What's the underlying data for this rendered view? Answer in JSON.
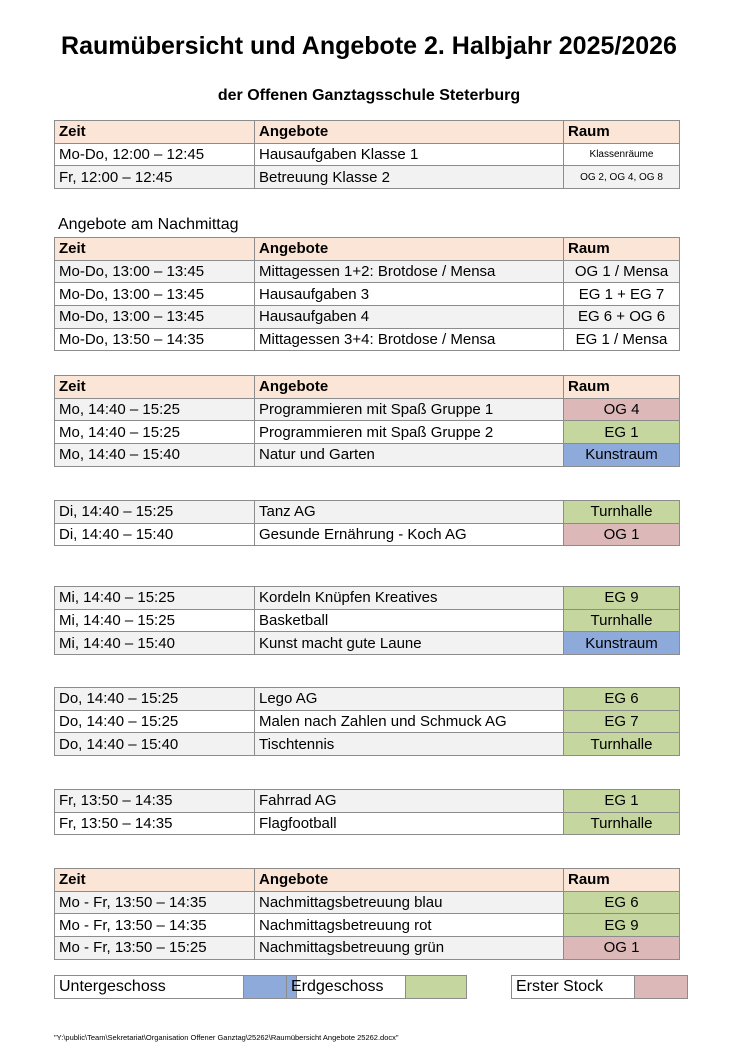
{
  "title": "Raumübersicht und Angebote 2. Halbjahr 2025/2026",
  "subtitle": "der Offenen Ganztagsschule Steterburg",
  "section_label": "Angebote am Nachmittag",
  "colors": {
    "header": "#fbe5d6",
    "Untergeschoss": "#8eaadb",
    "Erdgeschoss": "#c5d69f",
    "Erster Stock": "#ddb8b8"
  },
  "header": {
    "time": "Zeit",
    "activity": "Angebote",
    "room": "Raum"
  },
  "tables": [
    {
      "header": true,
      "rows": [
        {
          "time": "Mo-Do,  12:00 – 12:45",
          "activity": "Hausaufgaben Klasse 1",
          "room": "Klassenräume",
          "small": true
        },
        {
          "time": "Fr,  12:00 – 12:45",
          "activity": "Betreuung Klasse 2",
          "room": "OG 2, OG 4, OG 8",
          "small": true,
          "alt": true
        }
      ]
    },
    {
      "header": true,
      "rows": [
        {
          "time": "Mo-Do, 13:00 – 13:45",
          "activity": "Mittagessen 1+2: Brotdose / Mensa",
          "room": "OG 1 / Mensa",
          "alt": true
        },
        {
          "time": "Mo-Do, 13:00 – 13:45",
          "activity": "Hausaufgaben  3",
          "room": "EG 1 + EG 7"
        },
        {
          "time": "Mo-Do, 13:00 – 13:45",
          "activity": "Hausaufgaben  4",
          "room": "EG 6 + OG 6",
          "alt": true
        },
        {
          "time": "Mo-Do, 13:50 – 14:35",
          "activity": "Mittagessen 3+4: Brotdose / Mensa",
          "room": "EG 1 / Mensa"
        }
      ]
    },
    {
      "header": true,
      "rows": [
        {
          "time": "Mo, 14:40 – 15:25",
          "activity": "Programmieren mit Spaß Gruppe 1",
          "room": "OG 4",
          "floor": "Erster Stock",
          "alt": true
        },
        {
          "time": "Mo, 14:40 – 15:25",
          "activity": "Programmieren mit Spaß Gruppe 2",
          "room": "EG 1",
          "floor": "Erdgeschoss"
        },
        {
          "time": "Mo, 14:40 – 15:40",
          "activity": "Natur und Garten",
          "room": "Kunstraum",
          "floor": "Untergeschoss",
          "alt": true
        }
      ]
    },
    {
      "header": false,
      "rows": [
        {
          "time": "Di, 14:40 – 15:25",
          "activity": "Tanz AG",
          "room": "Turnhalle",
          "floor": "Erdgeschoss",
          "alt": true
        },
        {
          "time": "Di, 14:40 – 15:40",
          "activity": "Gesunde Ernährung - Koch AG",
          "room": "OG 1",
          "floor": "Erster Stock"
        }
      ]
    },
    {
      "header": false,
      "rows": [
        {
          "time": "Mi, 14:40 – 15:25",
          "activity": "Kordeln Knüpfen Kreatives",
          "room": "EG 9",
          "floor": "Erdgeschoss",
          "alt": true
        },
        {
          "time": "Mi, 14:40 – 15:25",
          "activity": "Basketball",
          "room": "Turnhalle",
          "floor": "Erdgeschoss"
        },
        {
          "time": "Mi, 14:40 – 15:40",
          "activity": "Kunst macht gute Laune",
          "room": "Kunstraum",
          "floor": "Untergeschoss",
          "alt": true
        }
      ]
    },
    {
      "header": false,
      "rows": [
        {
          "time": "Do, 14:40 – 15:25",
          "activity": "Lego AG",
          "room": "EG 6",
          "floor": "Erdgeschoss",
          "alt": true
        },
        {
          "time": "Do, 14:40 – 15:25",
          "activity": "Malen nach Zahlen und Schmuck AG",
          "room": "EG 7",
          "floor": "Erdgeschoss"
        },
        {
          "time": "Do, 14:40 – 15:40",
          "activity": "Tischtennis",
          "room": "Turnhalle",
          "floor": "Erdgeschoss",
          "alt": true
        }
      ]
    },
    {
      "header": false,
      "rows": [
        {
          "time": "Fr, 13:50 – 14:35",
          "activity": "Fahrrad AG",
          "room": "EG 1",
          "floor": "Erdgeschoss",
          "alt": true
        },
        {
          "time": "Fr, 13:50 – 14:35",
          "activity": "Flagfootball",
          "room": "Turnhalle",
          "floor": "Erdgeschoss"
        }
      ]
    },
    {
      "header": true,
      "rows": [
        {
          "time": "Mo - Fr, 13:50 – 14:35",
          "activity": "Nachmittagsbetreuung blau",
          "room": "EG 6",
          "floor": "Erdgeschoss",
          "alt": true
        },
        {
          "time": "Mo - Fr, 13:50 – 14:35",
          "activity": "Nachmittagsbetreuung rot",
          "room": "EG 9",
          "floor": "Erdgeschoss"
        },
        {
          "time": "Mo - Fr, 13:50 – 15:25",
          "activity": "Nachmittagsbetreuung grün",
          "room": "OG 1",
          "floor": "Erster Stock",
          "alt": true
        }
      ]
    }
  ],
  "legend": [
    {
      "label": "Untergeschoss",
      "color": "#8eaadb"
    },
    {
      "label": "Erdgeschoss",
      "color": "#c5d69f"
    },
    {
      "label": "Erster Stock",
      "color": "#ddb8b8"
    }
  ],
  "footer": "\"Y:\\public\\Team\\Sekretariat\\Organisation Offener Ganztag\\25262\\Raumübersicht Angebote 25262.docx\""
}
